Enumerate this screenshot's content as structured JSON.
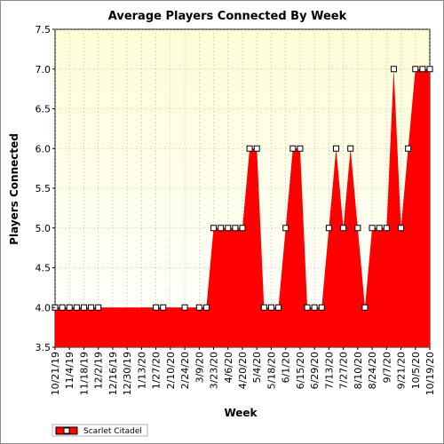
{
  "chart_data": {
    "type": "area",
    "title": "Average Players Connected By Week",
    "xlabel": "Week",
    "ylabel": "Players Connected",
    "ylim": [
      3.5,
      7.5
    ],
    "yticks": [
      "3.5",
      "4.0",
      "4.5",
      "5.0",
      "5.5",
      "6.0",
      "6.5",
      "7.0",
      "7.5"
    ],
    "grid": true,
    "legend_position": "bottom-left",
    "x_tick_labels": [
      "10/21/19",
      "11/4/19",
      "11/18/19",
      "12/2/19",
      "12/16/19",
      "12/30/19",
      "1/13/20",
      "1/27/20",
      "2/10/20",
      "2/24/20",
      "3/9/20",
      "3/23/20",
      "4/6/20",
      "4/20/20",
      "5/4/20",
      "5/18/20",
      "6/1/20",
      "6/15/20",
      "6/29/20",
      "7/13/20",
      "7/27/20",
      "8/10/20",
      "8/24/20",
      "9/7/20",
      "9/21/20",
      "10/5/20",
      "10/19/20"
    ],
    "x": [
      "10/21/19",
      "10/28/19",
      "11/4/19",
      "11/11/19",
      "11/18/19",
      "11/25/19",
      "12/2/19",
      "12/9/19",
      "12/16/19",
      "12/23/19",
      "12/30/19",
      "1/6/20",
      "1/13/20",
      "1/20/20",
      "1/27/20",
      "2/3/20",
      "2/10/20",
      "2/17/20",
      "2/24/20",
      "3/2/20",
      "3/9/20",
      "3/16/20",
      "3/23/20",
      "3/30/20",
      "4/6/20",
      "4/13/20",
      "4/20/20",
      "4/27/20",
      "5/4/20",
      "5/11/20",
      "5/18/20",
      "5/25/20",
      "6/1/20",
      "6/8/20",
      "6/15/20",
      "6/22/20",
      "6/29/20",
      "7/6/20",
      "7/13/20",
      "7/20/20",
      "7/27/20",
      "8/3/20",
      "8/10/20",
      "8/17/20",
      "8/24/20",
      "8/31/20",
      "9/7/20",
      "9/14/20",
      "9/21/20",
      "9/28/20",
      "10/5/20",
      "10/12/20",
      "10/19/20"
    ],
    "series": [
      {
        "name": "Scarlet Citadel",
        "color": "#ff0000",
        "values": [
          4,
          4,
          4,
          4,
          4,
          4,
          4,
          null,
          null,
          null,
          null,
          null,
          null,
          null,
          4,
          4,
          null,
          null,
          4,
          null,
          4,
          4,
          5,
          5,
          5,
          5,
          5,
          6,
          6,
          4,
          4,
          4,
          5,
          6,
          6,
          4,
          4,
          4,
          5,
          6,
          5,
          6,
          5,
          4,
          5,
          5,
          5,
          7,
          5,
          6,
          7,
          7,
          7
        ],
        "area_values": [
          4,
          4,
          4,
          4,
          4,
          4,
          4,
          4,
          4,
          4,
          4,
          4,
          4,
          4,
          4,
          4,
          4,
          4,
          4,
          4,
          4,
          4,
          5,
          5,
          5,
          5,
          5,
          6,
          6,
          4,
          4,
          4,
          5,
          6,
          6,
          4,
          4,
          4,
          5,
          6,
          5,
          6,
          5,
          4,
          5,
          5,
          5,
          7,
          5,
          6,
          7,
          7,
          7
        ]
      }
    ]
  }
}
